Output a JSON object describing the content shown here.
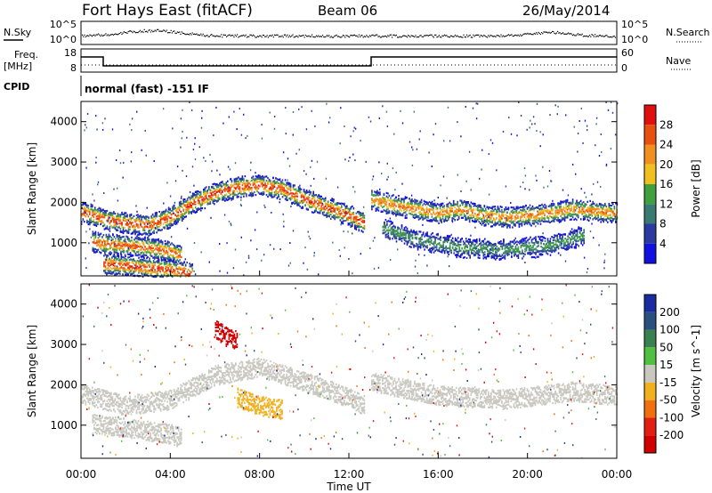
{
  "header": {
    "station": "Fort Hays East (fitACF)",
    "beam": "Beam 06",
    "date": "26/May/2014"
  },
  "strip_labels": {
    "nsky": "N.Sky",
    "nsearch": "N.Search",
    "freq_line1": "Freq.",
    "freq_line2": "[MHz]",
    "nave": "Nave",
    "cpid": "CPID",
    "cpid_value": "normal (fast) -151 IF",
    "noise_ticks": [
      "10^5",
      "10^0"
    ],
    "freq_ticks": [
      "18",
      "8"
    ],
    "nave_ticks": [
      "60",
      "0"
    ]
  },
  "time_axis": {
    "label": "Time UT",
    "ticks": [
      "00:00",
      "04:00",
      "08:00",
      "12:00",
      "16:00",
      "20:00",
      "00:00"
    ]
  },
  "range_axis": {
    "label": "Slant Range [km]",
    "ticks": [
      "1000",
      "2000",
      "3000",
      "4000"
    ]
  },
  "power_scale": {
    "label": "Power [dB]",
    "ticks": [
      "4",
      "8",
      "12",
      "16",
      "20",
      "24",
      "28"
    ],
    "colors": [
      "#1010e0",
      "#2a3aa0",
      "#3a7a70",
      "#40a040",
      "#f0c020",
      "#f09020",
      "#e85010",
      "#e01010"
    ]
  },
  "velocity_scale": {
    "label": "Velocity [m s^-1]",
    "ticks": [
      "200",
      "100",
      "50",
      "15",
      "-15",
      "-50",
      "-100",
      "-200"
    ],
    "colors": [
      "#1a2aa0",
      "#2a5080",
      "#3a8050",
      "#50c040",
      "#c8c8c0",
      "#f0b020",
      "#f07010",
      "#e02010",
      "#d00000"
    ]
  },
  "chart_data": [
    {
      "type": "heatmap",
      "name": "Power",
      "title": "Fort Hays East (fitACF) Beam 06 26/May/2014",
      "xlabel": "Time UT",
      "ylabel": "Slant Range [km]",
      "xlim": [
        0,
        24
      ],
      "ylim": [
        180,
        4500
      ],
      "zlabel": "Power [dB]",
      "zlim": [
        0,
        30
      ],
      "bands": [
        {
          "t": [
            0,
            1,
            2,
            3,
            4,
            5,
            6,
            7,
            8,
            9,
            10,
            11,
            12,
            12.7
          ],
          "r": [
            1800,
            1600,
            1500,
            1450,
            1650,
            2000,
            2250,
            2400,
            2450,
            2350,
            2100,
            1900,
            1700,
            1500
          ],
          "peak_db": 26
        },
        {
          "t": [
            0.5,
            1,
            2,
            3,
            4,
            4.5
          ],
          "r": [
            1050,
            1000,
            950,
            900,
            800,
            700
          ],
          "peak_db": 24
        },
        {
          "t": [
            1,
            2,
            3,
            4,
            5
          ],
          "r": [
            500,
            450,
            400,
            350,
            250
          ],
          "peak_db": 26
        },
        {
          "t": [
            13,
            14,
            15,
            16,
            17,
            18,
            19,
            20,
            21,
            22,
            23,
            24
          ],
          "r": [
            2100,
            1950,
            1850,
            1750,
            1850,
            1700,
            1650,
            1700,
            1750,
            1850,
            1800,
            1750
          ],
          "peak_db": 22
        },
        {
          "t": [
            13.5,
            15,
            17,
            19,
            21,
            22.5
          ],
          "r": [
            1400,
            1100,
            900,
            850,
            950,
            1200
          ],
          "peak_db": 12
        }
      ]
    },
    {
      "type": "heatmap",
      "name": "Velocity",
      "xlabel": "Time UT",
      "ylabel": "Slant Range [km]",
      "xlim": [
        0,
        24
      ],
      "ylim": [
        180,
        4500
      ],
      "zlabel": "Velocity [m s^-1]",
      "zlim": [
        -200,
        200
      ],
      "bands": [
        {
          "t": [
            0,
            2,
            4,
            6,
            8,
            10,
            12,
            12.7
          ],
          "r": [
            1800,
            1500,
            1650,
            2250,
            2450,
            2100,
            1700,
            1500
          ],
          "v": -10
        },
        {
          "t": [
            0.5,
            2,
            4,
            4.5
          ],
          "r": [
            1050,
            950,
            800,
            700
          ],
          "v": 5
        },
        {
          "t": [
            13,
            16,
            19,
            22,
            24
          ],
          "r": [
            2100,
            1750,
            1650,
            1850,
            1750
          ],
          "v": -5
        },
        {
          "t": [
            7,
            8,
            9
          ],
          "r": [
            1700,
            1500,
            1400
          ],
          "v": -40
        },
        {
          "t": [
            6,
            6.5,
            7
          ],
          "r": [
            3400,
            3200,
            3100
          ],
          "v": -180
        }
      ]
    }
  ]
}
